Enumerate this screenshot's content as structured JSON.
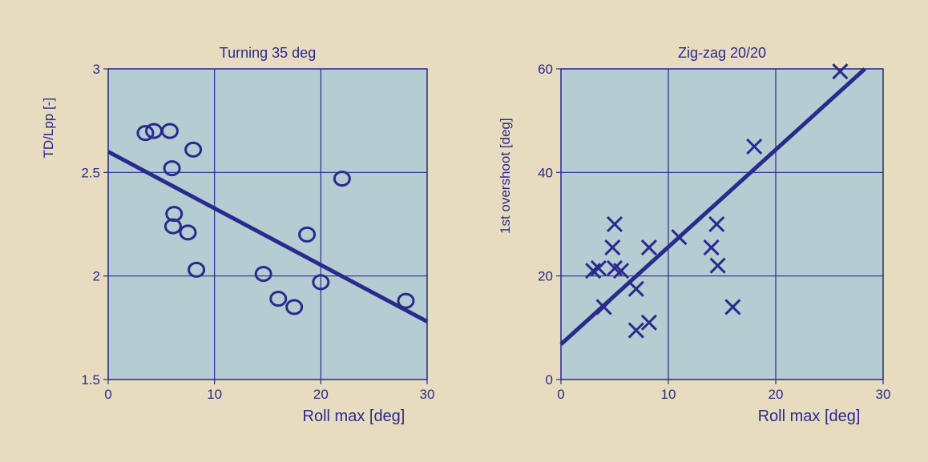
{
  "colors": {
    "background": "#e8dcc0",
    "plot_area": "#b5ccd2",
    "ink": "#2a2a8c",
    "grid": "#2a2a8c"
  },
  "chart_data": [
    {
      "type": "scatter",
      "title": "Turning 35 deg",
      "xlabel": "Roll max [deg]",
      "ylabel": "TD/Lpp [-]",
      "xlim": [
        0,
        30
      ],
      "ylim": [
        1.5,
        3
      ],
      "xticks": [
        0,
        10,
        20,
        30
      ],
      "yticks": [
        1.5,
        2,
        2.5,
        3
      ],
      "xtick_labels": [
        "0",
        "10",
        "20",
        "30"
      ],
      "ytick_labels": [
        "1.5",
        "2",
        "2.5",
        "3"
      ],
      "grid": true,
      "marker": "circle",
      "points": [
        {
          "x": 3.5,
          "y": 2.69
        },
        {
          "x": 4.3,
          "y": 2.7
        },
        {
          "x": 5.8,
          "y": 2.7
        },
        {
          "x": 8.0,
          "y": 2.61
        },
        {
          "x": 6.0,
          "y": 2.52
        },
        {
          "x": 22.0,
          "y": 2.47
        },
        {
          "x": 6.2,
          "y": 2.3
        },
        {
          "x": 6.1,
          "y": 2.24
        },
        {
          "x": 7.5,
          "y": 2.21
        },
        {
          "x": 18.7,
          "y": 2.2
        },
        {
          "x": 8.3,
          "y": 2.03
        },
        {
          "x": 14.6,
          "y": 2.01
        },
        {
          "x": 20.0,
          "y": 1.97
        },
        {
          "x": 16.0,
          "y": 1.89
        },
        {
          "x": 17.5,
          "y": 1.85
        },
        {
          "x": 28.0,
          "y": 1.88
        }
      ],
      "trendline": {
        "x": [
          0,
          30
        ],
        "y": [
          2.6,
          1.78
        ]
      }
    },
    {
      "type": "scatter",
      "title": "Zig-zag 20/20",
      "xlabel": "Roll max [deg]",
      "ylabel": "1st overshoot [deg]",
      "xlim": [
        0,
        30
      ],
      "ylim": [
        0,
        60
      ],
      "xticks": [
        0,
        10,
        20,
        30
      ],
      "yticks": [
        0,
        20,
        40,
        60
      ],
      "xtick_labels": [
        "0",
        "10",
        "20",
        "30"
      ],
      "ytick_labels": [
        "0",
        "20",
        "40",
        "60"
      ],
      "grid": true,
      "marker": "cross",
      "points": [
        {
          "x": 26.0,
          "y": 59.5
        },
        {
          "x": 18.0,
          "y": 45.0
        },
        {
          "x": 5.0,
          "y": 30.0
        },
        {
          "x": 14.5,
          "y": 30.0
        },
        {
          "x": 11.0,
          "y": 27.5
        },
        {
          "x": 4.8,
          "y": 25.5
        },
        {
          "x": 8.2,
          "y": 25.5
        },
        {
          "x": 14.0,
          "y": 25.5
        },
        {
          "x": 14.6,
          "y": 22.0
        },
        {
          "x": 3.0,
          "y": 21.0
        },
        {
          "x": 3.5,
          "y": 21.5
        },
        {
          "x": 5.0,
          "y": 21.5
        },
        {
          "x": 5.6,
          "y": 21.0
        },
        {
          "x": 7.0,
          "y": 17.5
        },
        {
          "x": 4.0,
          "y": 14.0
        },
        {
          "x": 16.0,
          "y": 14.0
        },
        {
          "x": 8.2,
          "y": 11.0
        },
        {
          "x": 7.0,
          "y": 9.5
        }
      ],
      "trendline": {
        "x": [
          0,
          28.3
        ],
        "y": [
          6.8,
          60
        ]
      }
    }
  ]
}
